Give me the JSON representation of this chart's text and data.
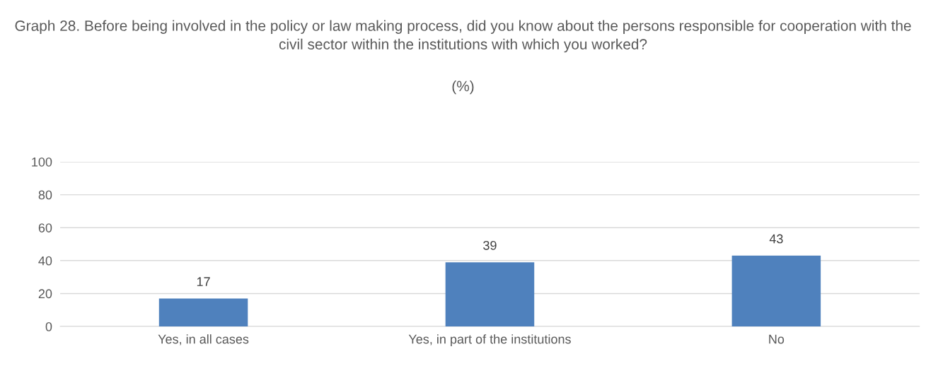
{
  "chart_data": {
    "type": "bar",
    "title": "Graph 28. Before being involved in the policy or law making process, did you know about the persons responsible for cooperation with the civil sector within the institutions with which you worked?",
    "subtitle": "(%)",
    "categories": [
      "Yes, in all cases",
      "Yes, in part of the institutions",
      "No"
    ],
    "series": [
      {
        "color": "#4f81bd",
        "values": [
          17,
          39,
          43
        ]
      }
    ],
    "ylim": [
      0,
      100
    ],
    "yticks": [
      0,
      20,
      40,
      60,
      80,
      100
    ],
    "grid": "y",
    "data_labels": true,
    "legend": false
  }
}
